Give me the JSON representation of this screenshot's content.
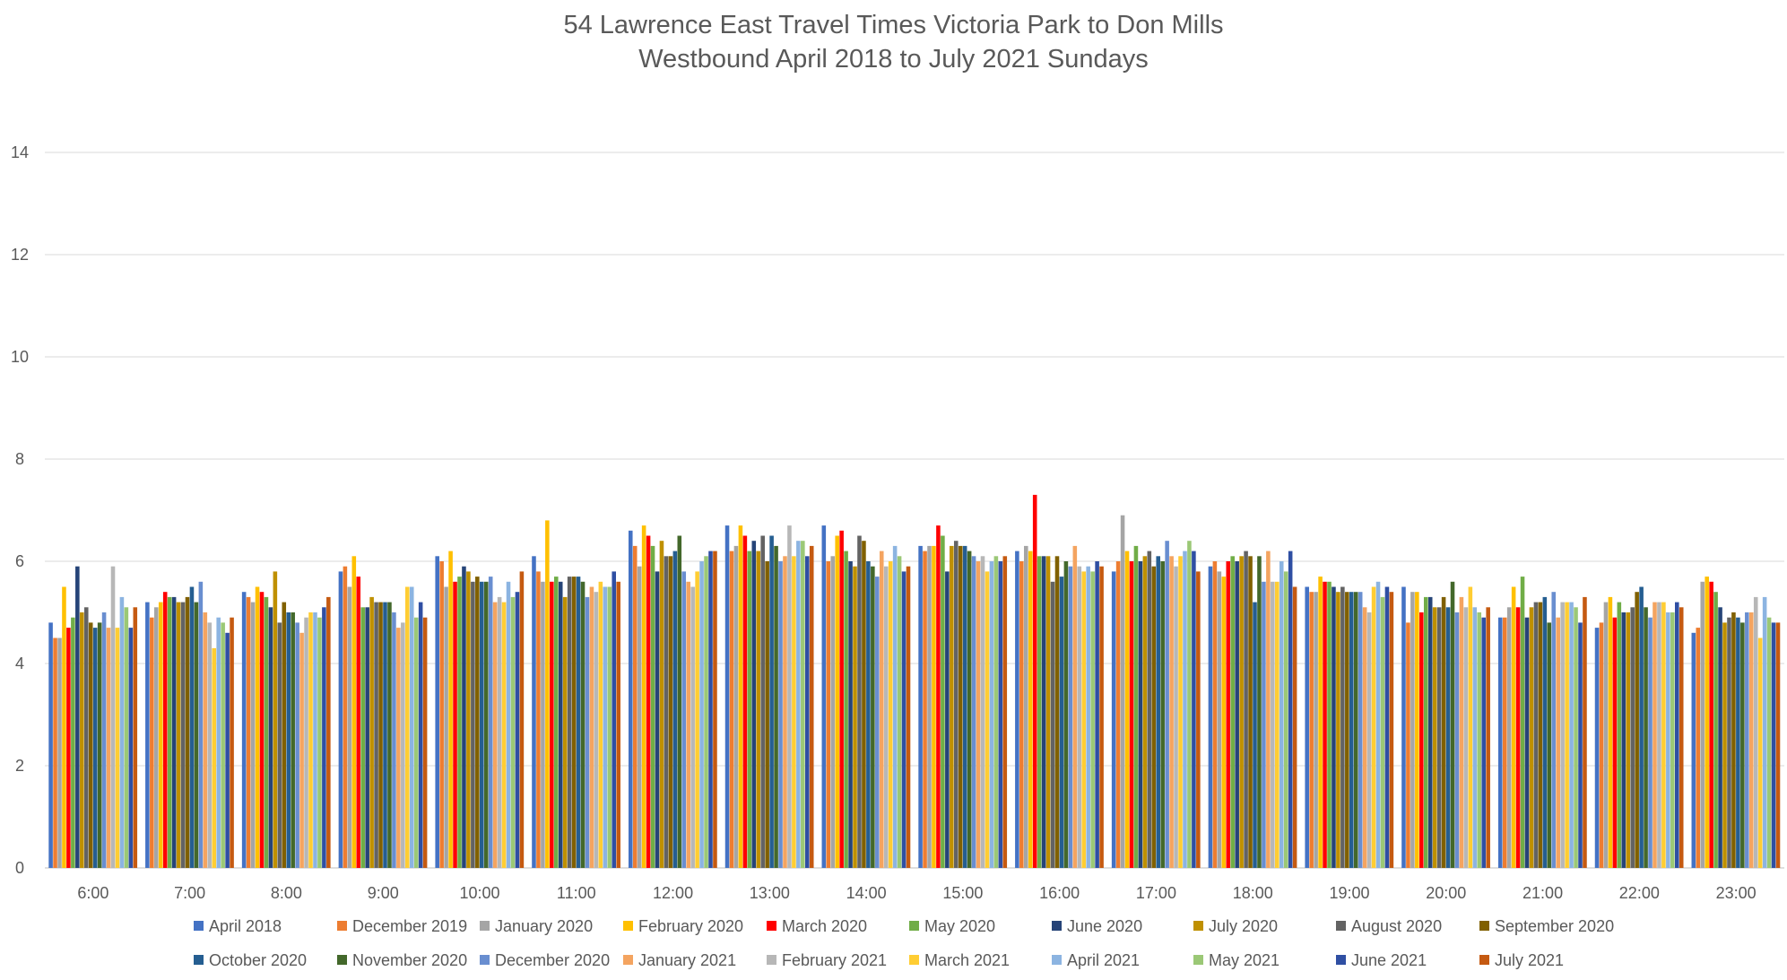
{
  "chart_data": {
    "type": "bar",
    "title": "54 Lawrence East Travel Times Victoria Park to Don Mills",
    "subtitle": "Westbound April 2018 to July 2021 Sundays",
    "xlabel": "",
    "ylabel": "",
    "ylim": [
      0,
      14
    ],
    "yticks": [
      "0",
      "2",
      "4",
      "6",
      "8",
      "10",
      "12",
      "14"
    ],
    "grid": true,
    "legend_position": "bottom",
    "categories": [
      "6:00",
      "7:00",
      "8:00",
      "9:00",
      "10:00",
      "11:00",
      "12:00",
      "13:00",
      "14:00",
      "15:00",
      "16:00",
      "17:00",
      "18:00",
      "19:00",
      "20:00",
      "21:00",
      "22:00",
      "23:00"
    ],
    "series": [
      {
        "name": "April 2018",
        "color": "#4472C4",
        "values": [
          4.8,
          5.2,
          5.4,
          5.8,
          6.1,
          6.1,
          6.6,
          6.7,
          6.7,
          6.3,
          6.2,
          5.8,
          5.9,
          5.5,
          5.5,
          4.9,
          4.7,
          4.6
        ]
      },
      {
        "name": "December 2019",
        "color": "#ED7D31",
        "values": [
          4.5,
          4.9,
          5.3,
          5.9,
          6.0,
          5.8,
          6.3,
          6.2,
          6.0,
          6.2,
          6.0,
          6.0,
          6.0,
          5.4,
          4.8,
          4.9,
          4.8,
          4.7
        ]
      },
      {
        "name": "January 2020",
        "color": "#A5A5A5",
        "values": [
          4.5,
          5.1,
          5.2,
          5.5,
          5.5,
          5.6,
          5.9,
          6.3,
          6.1,
          6.3,
          6.3,
          6.9,
          5.8,
          5.4,
          5.4,
          5.1,
          5.2,
          5.6
        ]
      },
      {
        "name": "February 2020",
        "color": "#FFC000",
        "values": [
          5.5,
          5.2,
          5.5,
          6.1,
          6.2,
          6.8,
          6.7,
          6.7,
          6.5,
          6.3,
          6.2,
          6.2,
          5.7,
          5.7,
          5.4,
          5.5,
          5.3,
          5.7
        ]
      },
      {
        "name": "March 2020",
        "color": "#FF0000",
        "values": [
          4.7,
          5.4,
          5.4,
          5.7,
          5.6,
          5.6,
          6.5,
          6.5,
          6.6,
          6.7,
          7.3,
          6.0,
          6.0,
          5.6,
          5.0,
          5.1,
          4.9,
          5.6
        ]
      },
      {
        "name": "May 2020",
        "color": "#70AD47",
        "values": [
          4.9,
          5.3,
          5.3,
          5.1,
          5.7,
          5.7,
          6.3,
          6.2,
          6.2,
          6.5,
          6.1,
          6.3,
          6.1,
          5.6,
          5.3,
          5.7,
          5.2,
          5.4
        ]
      },
      {
        "name": "June 2020",
        "color": "#264478",
        "values": [
          5.9,
          5.3,
          5.1,
          5.1,
          5.9,
          5.6,
          5.8,
          6.4,
          6.0,
          5.8,
          6.1,
          6.0,
          6.0,
          5.5,
          5.3,
          4.9,
          5.0,
          5.1
        ]
      },
      {
        "name": "July 2020",
        "color": "#BF9000",
        "values": [
          5.0,
          5.2,
          5.8,
          5.3,
          5.8,
          5.3,
          6.4,
          6.2,
          5.9,
          6.3,
          6.1,
          6.1,
          6.1,
          5.4,
          5.1,
          5.1,
          5.0,
          4.8
        ]
      },
      {
        "name": "August 2020",
        "color": "#636363",
        "values": [
          5.1,
          5.2,
          4.8,
          5.2,
          5.6,
          5.7,
          6.1,
          6.5,
          6.5,
          6.4,
          5.6,
          6.2,
          6.2,
          5.5,
          5.1,
          5.2,
          5.1,
          4.9
        ]
      },
      {
        "name": "September 2020",
        "color": "#806000",
        "values": [
          4.8,
          5.3,
          5.2,
          5.2,
          5.7,
          5.7,
          6.1,
          6.0,
          6.4,
          6.3,
          6.1,
          5.9,
          6.1,
          5.4,
          5.3,
          5.2,
          5.4,
          5.0
        ]
      },
      {
        "name": "October 2020",
        "color": "#255E91",
        "values": [
          4.7,
          5.5,
          5.0,
          5.2,
          5.6,
          5.7,
          6.2,
          6.5,
          6.0,
          6.3,
          5.7,
          6.1,
          5.2,
          5.4,
          5.1,
          5.3,
          5.5,
          4.9
        ]
      },
      {
        "name": "November 2020",
        "color": "#43682B",
        "values": [
          4.8,
          5.2,
          5.0,
          5.2,
          5.6,
          5.6,
          6.5,
          6.3,
          5.9,
          6.2,
          6.0,
          6.0,
          6.1,
          5.4,
          5.6,
          4.8,
          5.1,
          4.8
        ]
      },
      {
        "name": "December 2020",
        "color": "#698ED0",
        "values": [
          5.0,
          5.6,
          4.8,
          5.0,
          5.7,
          5.3,
          5.8,
          6.0,
          5.7,
          6.1,
          5.9,
          6.4,
          5.6,
          5.4,
          5.0,
          5.4,
          4.9,
          5.0
        ]
      },
      {
        "name": "January 2021",
        "color": "#F4A460",
        "values": [
          4.7,
          5.0,
          4.6,
          4.7,
          5.2,
          5.5,
          5.6,
          6.1,
          6.2,
          6.0,
          6.3,
          6.1,
          6.2,
          5.1,
          5.3,
          4.9,
          5.2,
          5.0
        ]
      },
      {
        "name": "February 2021",
        "color": "#B7B7B7",
        "values": [
          5.9,
          4.8,
          4.9,
          4.8,
          5.3,
          5.4,
          5.5,
          6.7,
          5.9,
          6.1,
          5.9,
          5.9,
          5.6,
          5.0,
          5.1,
          5.2,
          5.2,
          5.3
        ]
      },
      {
        "name": "March 2021",
        "color": "#FFCD33",
        "values": [
          4.7,
          4.3,
          5.0,
          5.5,
          5.2,
          5.6,
          5.8,
          6.1,
          6.0,
          5.8,
          5.8,
          6.1,
          5.6,
          5.5,
          5.5,
          5.2,
          5.2,
          4.5
        ]
      },
      {
        "name": "April 2021",
        "color": "#8CB4E1",
        "values": [
          5.3,
          4.9,
          5.0,
          5.5,
          5.6,
          5.5,
          6.0,
          6.4,
          6.3,
          6.0,
          5.9,
          6.2,
          6.0,
          5.6,
          5.1,
          5.2,
          5.0,
          5.3
        ]
      },
      {
        "name": "May 2021",
        "color": "#9BC876",
        "values": [
          5.1,
          4.8,
          4.9,
          4.9,
          5.3,
          5.5,
          6.1,
          6.4,
          6.1,
          6.1,
          5.8,
          6.4,
          5.8,
          5.3,
          5.0,
          5.1,
          5.0,
          4.9
        ]
      },
      {
        "name": "June 2021",
        "color": "#2F4FA3",
        "values": [
          4.7,
          4.6,
          5.1,
          5.2,
          5.4,
          5.8,
          6.2,
          6.1,
          5.8,
          6.0,
          6.0,
          6.2,
          6.2,
          5.5,
          4.9,
          4.8,
          5.2,
          4.8
        ]
      },
      {
        "name": "July 2021",
        "color": "#C55A11",
        "values": [
          5.1,
          4.9,
          5.3,
          4.9,
          5.8,
          5.6,
          6.2,
          6.3,
          5.9,
          6.1,
          5.9,
          5.8,
          5.5,
          5.4,
          5.1,
          5.3,
          5.1,
          4.8
        ]
      }
    ]
  }
}
